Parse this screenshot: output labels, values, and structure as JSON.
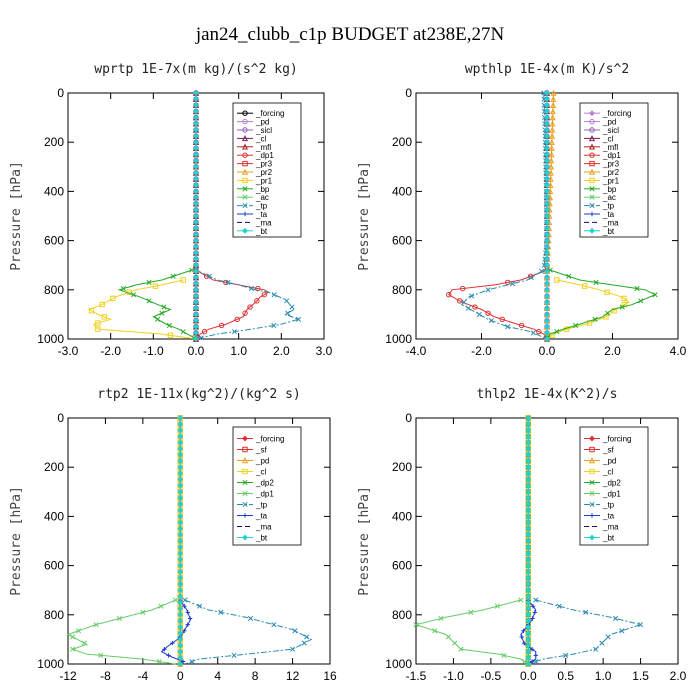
{
  "title": "jan24_clubb_c1p  BUDGET at238E,27N",
  "chart_data": [
    {
      "type": "line",
      "title": "wprtp  1E-7x(m kg)/(s^2 kg)",
      "ylabel": "Pressure [hPa]",
      "xlim": [
        -3,
        3
      ],
      "ylim": [
        1000,
        0
      ],
      "xticks": [
        "-3.0",
        "-2.0",
        "-1.0",
        "0.0",
        "1.0",
        "2.0",
        "3.0"
      ],
      "xtick_values": [
        -3,
        -2,
        -1,
        0,
        1,
        2,
        3
      ],
      "yticks": [
        "0",
        "200",
        "400",
        "600",
        "800",
        "1000"
      ],
      "ytick_values": [
        0,
        200,
        400,
        600,
        800,
        1000
      ],
      "legend_position": "upper-right",
      "series": [
        {
          "name": "_forcing",
          "color": "#000000",
          "marker": "circle",
          "dash": "",
          "p": [
            0,
            1000
          ],
          "v": [
            0,
            0
          ]
        },
        {
          "name": "_pd",
          "color": "#b080d0",
          "marker": "circle",
          "dash": "",
          "p": [],
          "v": []
        },
        {
          "name": "_sicl",
          "color": "#9060c0",
          "marker": "circle",
          "dash": "",
          "p": [
            0,
            1000
          ],
          "v": [
            0,
            0
          ]
        },
        {
          "name": "_cl",
          "color": "#7a1a5a",
          "marker": "triangle",
          "dash": "",
          "p": [
            0,
            1000
          ],
          "v": [
            0,
            0
          ]
        },
        {
          "name": "_mfl",
          "color": "#aa2222",
          "marker": "triangle",
          "dash": "",
          "p": [
            0,
            1000
          ],
          "v": [
            0,
            0
          ]
        },
        {
          "name": "_dp1",
          "color": "#dd3030",
          "marker": "circle",
          "dash": "",
          "p": [
            720,
            760,
            780,
            800,
            810,
            830,
            850,
            880,
            910,
            940,
            960,
            980,
            1000
          ],
          "v": [
            0.0,
            0.4,
            1.0,
            1.6,
            1.7,
            1.5,
            1.4,
            1.2,
            1.1,
            0.7,
            0.3,
            0.1,
            0.0
          ]
        },
        {
          "name": "_pr3",
          "color": "#dd3030",
          "marker": "square",
          "dash": "",
          "p": [],
          "v": []
        },
        {
          "name": "_pr2",
          "color": "#e8a020",
          "marker": "triangle",
          "dash": "",
          "p": [],
          "v": []
        },
        {
          "name": "_pr1",
          "color": "#f0d020",
          "marker": "square",
          "dash": "",
          "p": [
            760,
            780,
            800,
            830,
            860,
            880,
            900,
            920,
            940,
            960,
            980,
            1000
          ],
          "v": [
            -0.3,
            -0.8,
            -1.4,
            -1.9,
            -2.2,
            -2.5,
            -2.3,
            -2.0,
            -2.4,
            -2.3,
            -0.8,
            0.0
          ]
        },
        {
          "name": "_bp",
          "color": "#22aa22",
          "marker": "x",
          "dash": "",
          "p": [
            720,
            760,
            780,
            800,
            830,
            860,
            880,
            910,
            940,
            960,
            980,
            1000
          ],
          "v": [
            -0.1,
            -0.8,
            -1.4,
            -1.8,
            -1.3,
            -0.9,
            -0.6,
            -1.0,
            -0.7,
            -0.4,
            -0.2,
            0.0
          ]
        },
        {
          "name": "_ac",
          "color": "#66cc66",
          "marker": "x",
          "dash": "",
          "p": [],
          "v": []
        },
        {
          "name": "_tp",
          "color": "#2a8ab0",
          "marker": "x",
          "dash": "6 2 2 2",
          "p": [
            720,
            760,
            780,
            800,
            810,
            840,
            860,
            880,
            900,
            920,
            940,
            960,
            980,
            1000
          ],
          "v": [
            0.0,
            0.5,
            1.0,
            1.4,
            1.7,
            2.1,
            2.2,
            2.3,
            2.1,
            2.4,
            2.0,
            1.3,
            0.5,
            0.0
          ]
        },
        {
          "name": "_ta",
          "color": "#1a3ad0",
          "marker": "plus",
          "dash": "",
          "p": [],
          "v": []
        },
        {
          "name": "_ma",
          "color": "#0a0a70",
          "marker": "",
          "dash": "5 3",
          "p": [
            0,
            1000
          ],
          "v": [
            0,
            0
          ]
        },
        {
          "name": "_bt",
          "color": "#22d0d0",
          "marker": "diamond",
          "dash": "",
          "p": [
            0,
            1000
          ],
          "v": [
            0,
            0
          ]
        }
      ]
    },
    {
      "type": "line",
      "title": "wpthlp  1E-4x(m K)/s^2",
      "ylabel": "Pressure [hPa]",
      "xlim": [
        -4,
        4
      ],
      "ylim": [
        1000,
        0
      ],
      "xticks": [
        "-4.0",
        "-2.0",
        "0.0",
        "2.0",
        "4.0"
      ],
      "xtick_values": [
        -4,
        -2,
        0,
        2,
        4
      ],
      "yticks": [
        "0",
        "200",
        "400",
        "600",
        "800",
        "1000"
      ],
      "ytick_values": [
        0,
        200,
        400,
        600,
        800,
        1000
      ],
      "legend_position": "upper-right",
      "series": [
        {
          "name": "_forcing",
          "color": "#c080d0",
          "marker": "diamond",
          "dash": "",
          "p": [
            0,
            1000
          ],
          "v": [
            0,
            0
          ]
        },
        {
          "name": "_pd",
          "color": "#b080d0",
          "marker": "circle",
          "dash": "",
          "p": [],
          "v": []
        },
        {
          "name": "_sicl",
          "color": "#9060c0",
          "marker": "circle",
          "dash": "",
          "p": [
            0,
            1000
          ],
          "v": [
            0,
            0
          ]
        },
        {
          "name": "_cl",
          "color": "#7a1a5a",
          "marker": "triangle",
          "dash": "",
          "p": [
            0,
            1000
          ],
          "v": [
            0,
            0
          ]
        },
        {
          "name": "_mfl",
          "color": "#aa2222",
          "marker": "triangle",
          "dash": "",
          "p": [
            0,
            1000
          ],
          "v": [
            0,
            0
          ]
        },
        {
          "name": "_dp1",
          "color": "#dd3030",
          "marker": "circle",
          "dash": "",
          "p": [
            720,
            760,
            780,
            800,
            820,
            850,
            880,
            910,
            940,
            960,
            980,
            1000
          ],
          "v": [
            0.0,
            -0.8,
            -1.6,
            -2.9,
            -3.0,
            -2.6,
            -2.0,
            -1.6,
            -0.9,
            -0.4,
            -0.1,
            0.0
          ]
        },
        {
          "name": "_pr3",
          "color": "#dd3030",
          "marker": "square",
          "dash": "",
          "p": [],
          "v": []
        },
        {
          "name": "_pr2",
          "color": "#e8a020",
          "marker": "triangle",
          "dash": "",
          "p": [
            0,
            200,
            400,
            600,
            700,
            1000
          ],
          "v": [
            0.2,
            0.15,
            0.1,
            0.05,
            0.0,
            0.0
          ]
        },
        {
          "name": "_pr1",
          "color": "#f0d020",
          "marker": "square",
          "dash": "",
          "p": [
            760,
            780,
            800,
            830,
            850,
            880,
            910,
            940,
            960,
            980,
            1000
          ],
          "v": [
            0.3,
            1.0,
            1.6,
            2.3,
            2.5,
            2.1,
            1.8,
            1.2,
            0.6,
            0.2,
            0.0
          ]
        },
        {
          "name": "_bp",
          "color": "#22aa22",
          "marker": "x",
          "dash": "",
          "p": [
            720,
            760,
            780,
            800,
            820,
            860,
            880,
            910,
            940,
            960,
            980,
            1000
          ],
          "v": [
            0.1,
            1.0,
            2.0,
            3.0,
            3.3,
            2.6,
            2.0,
            1.7,
            1.0,
            0.5,
            0.1,
            0.0
          ]
        },
        {
          "name": "_ac",
          "color": "#66cc66",
          "marker": "x",
          "dash": "",
          "p": [],
          "v": []
        },
        {
          "name": "_tp",
          "color": "#2a8ab0",
          "marker": "x",
          "dash": "6 2 2 2",
          "p": [
            0,
            200,
            600,
            720,
            760,
            780,
            800,
            830,
            860,
            890,
            920,
            950,
            970,
            1000
          ],
          "v": [
            -0.1,
            -0.05,
            0.0,
            -0.1,
            -0.6,
            -1.2,
            -1.8,
            -2.4,
            -2.6,
            -2.2,
            -1.8,
            -1.2,
            -0.5,
            0.0
          ]
        },
        {
          "name": "_ta",
          "color": "#1a3ad0",
          "marker": "plus",
          "dash": "",
          "p": [],
          "v": []
        },
        {
          "name": "_ma",
          "color": "#0a0a70",
          "marker": "",
          "dash": "5 3",
          "p": [
            0,
            1000
          ],
          "v": [
            0,
            0
          ]
        },
        {
          "name": "_bt",
          "color": "#22d0d0",
          "marker": "diamond",
          "dash": "",
          "p": [
            0,
            1000
          ],
          "v": [
            0,
            0
          ]
        }
      ]
    },
    {
      "type": "line",
      "title": "rtp2  1E-11x(kg^2)/(kg^2 s)",
      "ylabel": "Pressure [hPa]",
      "xlim": [
        -12,
        16
      ],
      "ylim": [
        1000,
        0
      ],
      "xticks": [
        "-12",
        "-8",
        "-4",
        "0",
        "4",
        "8",
        "12",
        "16"
      ],
      "xtick_values": [
        -12,
        -8,
        -4,
        0,
        4,
        8,
        12,
        16
      ],
      "yticks": [
        "0",
        "200",
        "400",
        "600",
        "800",
        "1000"
      ],
      "ytick_values": [
        0,
        200,
        400,
        600,
        800,
        1000
      ],
      "legend_position": "upper-right",
      "series": [
        {
          "name": "_forcing",
          "color": "#dd3030",
          "marker": "diamond",
          "dash": "",
          "p": [
            0,
            1000
          ],
          "v": [
            0,
            0
          ]
        },
        {
          "name": "_sf",
          "color": "#dd3030",
          "marker": "square",
          "dash": "",
          "p": [
            0,
            1000
          ],
          "v": [
            0,
            0
          ]
        },
        {
          "name": "_pd",
          "color": "#e8a020",
          "marker": "triangle",
          "dash": "",
          "p": [
            0,
            1000
          ],
          "v": [
            0,
            0
          ]
        },
        {
          "name": "_cl",
          "color": "#f0d020",
          "marker": "square",
          "dash": "",
          "p": [
            0,
            1000
          ],
          "v": [
            0,
            0
          ]
        },
        {
          "name": "_dp2",
          "color": "#22aa22",
          "marker": "x",
          "dash": "",
          "p": [],
          "v": []
        },
        {
          "name": "_dp1",
          "color": "#66cc66",
          "marker": "x",
          "dash": "",
          "p": [
            740,
            780,
            810,
            840,
            860,
            880,
            900,
            920,
            940,
            960,
            980,
            1000
          ],
          "v": [
            -0.5,
            -3.0,
            -6.0,
            -9.0,
            -10.5,
            -12.0,
            -11.0,
            -10.0,
            -11.5,
            -10.0,
            -4.0,
            -0.5
          ]
        },
        {
          "name": "_tp",
          "color": "#2a8ab0",
          "marker": "x",
          "dash": "6 2 2 2",
          "p": [
            740,
            780,
            810,
            840,
            860,
            880,
            900,
            920,
            940,
            960,
            980,
            1000
          ],
          "v": [
            0.5,
            3.0,
            7.0,
            10.0,
            12.0,
            13.0,
            14.0,
            13.0,
            12.0,
            7.0,
            2.0,
            0.5
          ]
        },
        {
          "name": "_ta",
          "color": "#1a3ad0",
          "marker": "plus",
          "dash": "",
          "p": [
            740,
            780,
            820,
            860,
            880,
            900,
            930,
            950,
            970,
            990,
            1000
          ],
          "v": [
            0.0,
            0.7,
            1.1,
            0.5,
            0.2,
            -0.3,
            -1.4,
            -2.0,
            -1.0,
            0.3,
            0.0
          ]
        },
        {
          "name": "_ma",
          "color": "#0a0a70",
          "marker": "",
          "dash": "5 3",
          "p": [
            0,
            1000
          ],
          "v": [
            0,
            0
          ]
        },
        {
          "name": "_bt",
          "color": "#22d0d0",
          "marker": "diamond",
          "dash": "",
          "p": [
            0,
            1000
          ],
          "v": [
            0,
            0
          ]
        }
      ]
    },
    {
      "type": "line",
      "title": "thlp2  1E-4x(K^2)/s",
      "ylabel": "Pressure [hPa]",
      "xlim": [
        -1.5,
        2.0
      ],
      "ylim": [
        1000,
        0
      ],
      "xticks": [
        "-1.5",
        "-1.0",
        "-0.5",
        "0.0",
        "0.5",
        "1.0",
        "1.5",
        "2.0"
      ],
      "xtick_values": [
        -1.5,
        -1.0,
        -0.5,
        0.0,
        0.5,
        1.0,
        1.5,
        2.0
      ],
      "yticks": [
        "0",
        "200",
        "400",
        "600",
        "800",
        "1000"
      ],
      "ytick_values": [
        0,
        200,
        400,
        600,
        800,
        1000
      ],
      "legend_position": "upper-right",
      "series": [
        {
          "name": "_forcing",
          "color": "#dd3030",
          "marker": "diamond",
          "dash": "",
          "p": [
            0,
            1000
          ],
          "v": [
            0,
            0
          ]
        },
        {
          "name": "_sf",
          "color": "#dd3030",
          "marker": "square",
          "dash": "",
          "p": [
            0,
            1000
          ],
          "v": [
            0,
            0
          ]
        },
        {
          "name": "_pd",
          "color": "#e8a020",
          "marker": "triangle",
          "dash": "",
          "p": [
            0,
            1000
          ],
          "v": [
            0,
            0
          ]
        },
        {
          "name": "_cl",
          "color": "#f0d020",
          "marker": "square",
          "dash": "",
          "p": [
            0,
            1000
          ],
          "v": [
            0,
            0
          ]
        },
        {
          "name": "_dp2",
          "color": "#22aa22",
          "marker": "x",
          "dash": "",
          "p": [
            0,
            1000
          ],
          "v": [
            0,
            0
          ]
        },
        {
          "name": "_dp1",
          "color": "#66cc66",
          "marker": "x",
          "dash": "",
          "p": [
            740,
            780,
            810,
            840,
            860,
            880,
            910,
            940,
            960,
            980,
            1000
          ],
          "v": [
            -0.1,
            -0.6,
            -1.1,
            -1.5,
            -1.3,
            -1.1,
            -1.0,
            -0.9,
            -0.4,
            -0.1,
            0.0
          ]
        },
        {
          "name": "_tp",
          "color": "#2a8ab0",
          "marker": "x",
          "dash": "6 2 2 2",
          "p": [
            740,
            780,
            810,
            840,
            860,
            880,
            910,
            940,
            960,
            980,
            1000
          ],
          "v": [
            0.1,
            0.6,
            1.1,
            1.5,
            1.3,
            1.1,
            1.0,
            0.9,
            0.6,
            0.2,
            0.0
          ]
        },
        {
          "name": "_ta",
          "color": "#1a3ad0",
          "marker": "plus",
          "dash": "",
          "p": [
            740,
            780,
            820,
            860,
            880,
            920,
            950,
            980,
            1000
          ],
          "v": [
            0.0,
            0.1,
            0.05,
            -0.05,
            -0.1,
            -0.05,
            0.1,
            0.1,
            0.0
          ]
        },
        {
          "name": "_ma",
          "color": "#0a0a70",
          "marker": "",
          "dash": "5 3",
          "p": [
            0,
            1000
          ],
          "v": [
            0,
            0
          ]
        },
        {
          "name": "_bt",
          "color": "#22d0d0",
          "marker": "diamond",
          "dash": "",
          "p": [
            0,
            1000
          ],
          "v": [
            0,
            0
          ]
        }
      ]
    }
  ]
}
